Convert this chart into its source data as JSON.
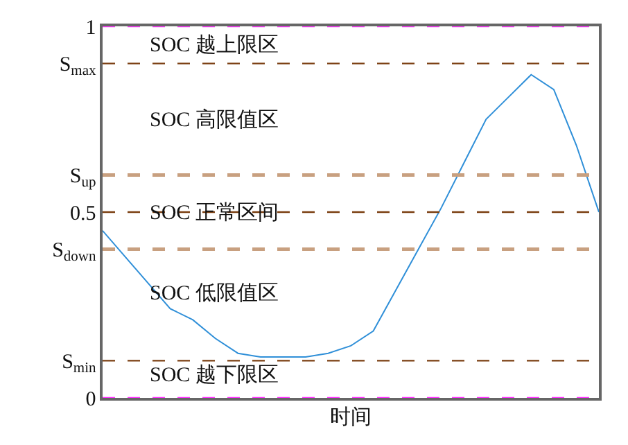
{
  "chart_data": {
    "type": "line",
    "xlabel": "时间",
    "categories": [
      null,
      null,
      null,
      null,
      null,
      null,
      null,
      null,
      null,
      null,
      null,
      null,
      null,
      null,
      null,
      null,
      null,
      null,
      null,
      null,
      null,
      null,
      null
    ],
    "series": [
      {
        "color": "#2f8fd8",
        "values": [
          0.45,
          0.38,
          0.31,
          0.24,
          0.21,
          0.16,
          0.12,
          0.11,
          0.11,
          0.11,
          0.12,
          0.14,
          0.18,
          0.29,
          0.4,
          0.51,
          0.63,
          0.75,
          0.81,
          0.87,
          0.83,
          0.68,
          0.5
        ]
      }
    ],
    "ylim": [
      0,
      1
    ],
    "yticks": [
      0,
      {
        "value": 0.1,
        "label": "S$_{min}$"
      },
      {
        "value": 0.4,
        "label": "S$_{down}$"
      },
      0.5,
      {
        "value": 0.6,
        "label": "S$_{up}$"
      },
      {
        "value": 0.9,
        "label": "S$_{max}$"
      },
      1
    ],
    "ref_lines": [
      {
        "axis": "y",
        "value": 1,
        "color": "#ff33ff",
        "line_style": "dashed"
      },
      {
        "axis": "y",
        "value": 0.9,
        "color": "#7a3e10",
        "line_style": "dashed"
      },
      {
        "axis": "y",
        "value": 0.6,
        "color": "#c8a080",
        "line_style": "dashed"
      },
      {
        "axis": "y",
        "value": 0.5,
        "color": "#7a3e10",
        "line_style": "dashed"
      },
      {
        "axis": "y",
        "value": 0.4,
        "color": "#c8a080",
        "line_style": "dashed"
      },
      {
        "axis": "y",
        "value": 0.1,
        "color": "#7a3e10",
        "line_style": "dashed"
      },
      {
        "axis": "y",
        "value": 0,
        "color": "#ff33ff",
        "line_style": "dashed"
      }
    ],
    "annotations": [
      "SOC 越上限区",
      "SOC 高限值区",
      "SOC 正常区间",
      "SOC 低限值区",
      "SOC 越下限区"
    ],
    "marker": "none",
    "line_style": "solid"
  }
}
